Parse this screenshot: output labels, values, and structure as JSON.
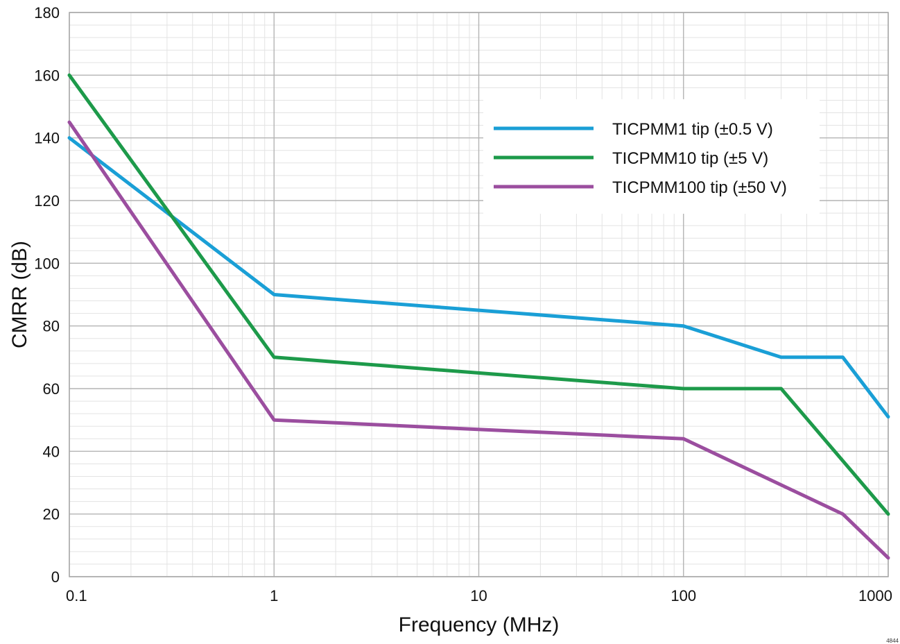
{
  "chart_data": {
    "type": "line",
    "title": "",
    "xlabel": "Frequency (MHz)",
    "ylabel": "CMRR (dB)",
    "xscale": "log",
    "xlim": [
      0.1,
      1000
    ],
    "ylim": [
      0,
      180
    ],
    "xticks": [
      0.1,
      1,
      10,
      100,
      1000
    ],
    "xtick_labels": [
      "0.1",
      "1",
      "10",
      "100",
      "1000"
    ],
    "yticks": [
      0,
      20,
      40,
      60,
      80,
      100,
      120,
      140,
      160,
      180
    ],
    "ytick_labels": [
      "0",
      "20",
      "40",
      "60",
      "80",
      "100",
      "120",
      "140",
      "160",
      "180"
    ],
    "grid": true,
    "legend_position": "top-right",
    "series": [
      {
        "name": "TICPMM1 tip (±0.5 V)",
        "color": "#1a9fd6",
        "points": [
          [
            0.1,
            140
          ],
          [
            1,
            90
          ],
          [
            100,
            80
          ],
          [
            300,
            70
          ],
          [
            600,
            70
          ],
          [
            1000,
            51
          ]
        ]
      },
      {
        "name": "TICPMM10 tip (±5 V)",
        "color": "#1d9a4a",
        "points": [
          [
            0.1,
            160
          ],
          [
            1,
            70
          ],
          [
            100,
            60
          ],
          [
            300,
            60
          ],
          [
            1000,
            20
          ]
        ]
      },
      {
        "name": "TICPMM100 tip (±50 V)",
        "color": "#9b4e9f",
        "points": [
          [
            0.1,
            145
          ],
          [
            1,
            50
          ],
          [
            100,
            44
          ],
          [
            600,
            20
          ],
          [
            1000,
            6
          ]
        ]
      }
    ]
  },
  "corner_id": "4844"
}
